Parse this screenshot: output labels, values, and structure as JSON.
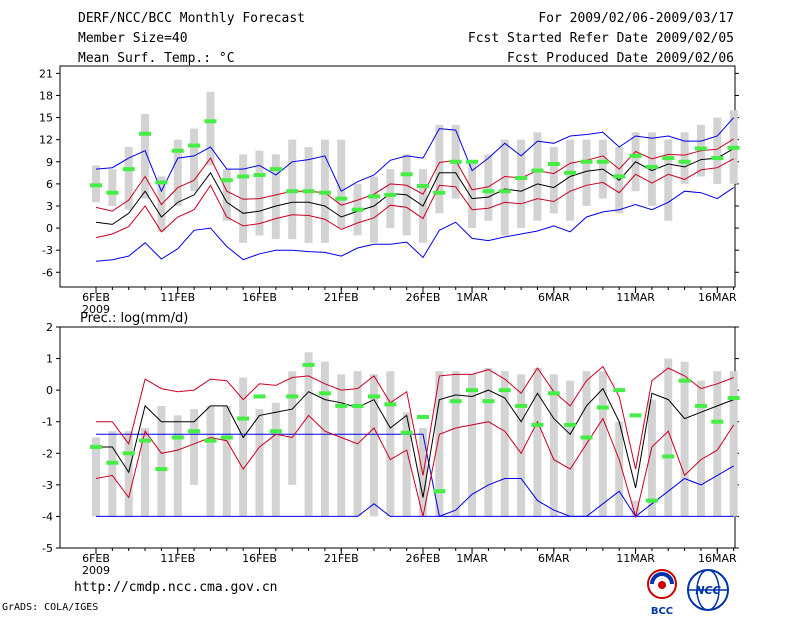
{
  "header": {
    "title": "DERF/NCC/BCC Monthly Forecast",
    "member_size": "Member Size=40",
    "variable": "Mean Surf. Temp.: °C",
    "period": "For 2009/02/06-2009/03/17",
    "started": "Fcst Started Refer Date 2009/02/05",
    "produced": "Fcst Produced Date 2009/02/06"
  },
  "footer": {
    "url": "http://cmdp.ncc.cma.gov.cn",
    "grads": "GrADS: COLA/IGES",
    "logo_bcc": "BCC",
    "logo_ncc": "NCC"
  },
  "colors": {
    "bar": "#d3d3d3",
    "mean": "#000000",
    "spread": "#cc0022",
    "extreme": "#0000ee",
    "obs": "#44ee44"
  },
  "chart_data": [
    {
      "type": "box",
      "title": "Mean Surf. Temp.: °C",
      "xlabel": "",
      "ylabel": "",
      "ylim": [
        -8,
        22
      ],
      "yticks": [
        -6,
        -3,
        0,
        3,
        6,
        9,
        12,
        15,
        18,
        21
      ],
      "x_ticks": [
        {
          "day": 0,
          "label": "6FEB",
          "sub": "2009"
        },
        {
          "day": 5,
          "label": "11FEB"
        },
        {
          "day": 10,
          "label": "16FEB"
        },
        {
          "day": 15,
          "label": "21FEB"
        },
        {
          "day": 20,
          "label": "26FEB"
        },
        {
          "day": 23,
          "label": "1MAR"
        },
        {
          "day": 28,
          "label": "6MAR"
        },
        {
          "day": 33,
          "label": "11MAR"
        },
        {
          "day": 38,
          "label": "16MAR"
        }
      ],
      "days": 40,
      "bar_low": [
        3.5,
        3,
        2.5,
        4,
        -0.5,
        3,
        5,
        8.5,
        1,
        -2,
        -1,
        -1.5,
        -1.5,
        -2,
        -2,
        0,
        -1,
        -2,
        0,
        -1,
        -2,
        2,
        4,
        0,
        1,
        -1,
        0,
        1,
        2,
        1,
        3,
        4,
        2,
        5,
        3,
        1,
        6,
        7,
        6,
        6
      ],
      "bar_high": [
        8.5,
        8,
        11,
        15.5,
        7,
        12,
        13.5,
        18.5,
        8,
        10,
        10.5,
        10,
        12,
        11,
        12,
        12,
        6,
        7,
        8,
        10,
        8,
        14,
        14,
        9,
        10,
        12,
        12,
        13,
        11,
        12,
        12,
        12,
        11,
        13,
        13,
        12,
        13,
        14,
        15,
        16
      ],
      "mean": [
        0.8,
        0.5,
        2,
        5,
        1.5,
        3.5,
        4.5,
        7.5,
        3.5,
        2,
        2.3,
        3,
        3.5,
        3.5,
        3,
        1.5,
        2.3,
        3,
        4.7,
        4.5,
        3,
        7.5,
        7.5,
        4,
        4.2,
        5.3,
        5,
        6,
        5.5,
        7,
        7.7,
        8,
        6.5,
        9,
        7.8,
        8.7,
        8.3,
        9.3,
        9.5,
        10.8
      ],
      "upper": [
        2.8,
        2.3,
        3.8,
        7,
        3.2,
        5.5,
        6.5,
        9.5,
        5,
        3.9,
        4,
        4.5,
        5,
        5,
        4.8,
        3.1,
        3.8,
        4.6,
        6,
        5.8,
        4.6,
        8.9,
        9.2,
        5.2,
        5.6,
        7,
        6.8,
        7.8,
        7.4,
        8.8,
        9.2,
        9.8,
        8,
        10.4,
        9.4,
        10,
        9.9,
        10.5,
        10.7,
        12.1
      ],
      "lower": [
        -1.3,
        -0.8,
        0.2,
        3,
        -0.5,
        1.5,
        2.5,
        5.8,
        1.5,
        0.3,
        0.6,
        1.3,
        1.8,
        1.7,
        1.2,
        -0.2,
        0.7,
        1.4,
        3.1,
        2.8,
        1.3,
        5.8,
        5.6,
        2.5,
        2.7,
        3.5,
        3.3,
        4,
        3.6,
        5,
        5.8,
        6.2,
        4.8,
        7.3,
        6.1,
        7.3,
        6.6,
        7.9,
        8.2,
        9.4
      ],
      "max": [
        8,
        8.2,
        9.5,
        10.5,
        5,
        9.5,
        9.8,
        11,
        8,
        8,
        8.5,
        7.2,
        9,
        9.3,
        9.8,
        5,
        6.3,
        7.2,
        9.2,
        9.8,
        9.5,
        13.5,
        13.3,
        7.8,
        9.5,
        11.5,
        9.8,
        11.8,
        11.5,
        12.5,
        12.7,
        13,
        11,
        12.5,
        12.2,
        12.5,
        11.8,
        11.8,
        12.5,
        15
      ],
      "min": [
        -4.5,
        -4.3,
        -3.8,
        -2,
        -4.2,
        -2.8,
        -0.3,
        0,
        -2.5,
        -4.3,
        -3.5,
        -3,
        -3,
        -3.2,
        -3.3,
        -3.8,
        -2.7,
        -2.2,
        -2.2,
        -1.9,
        -4,
        -0.3,
        0.8,
        -1.4,
        -1.7,
        -1.2,
        -0.8,
        -0.4,
        0.3,
        -0.5,
        1.5,
        2.2,
        2.5,
        3.2,
        2.5,
        3.5,
        5,
        4.8,
        4,
        5.5
      ],
      "obs": [
        5.8,
        4.8,
        8,
        12.8,
        6.2,
        10.5,
        11.2,
        14.5,
        6.5,
        7,
        7.2,
        8,
        5,
        5,
        4.8,
        4,
        2.5,
        4.3,
        4.5,
        7.3,
        5.7,
        4.8,
        9,
        9,
        5,
        5,
        6.8,
        7.8,
        8.7,
        7.5,
        9,
        9,
        7,
        9.8,
        8.3,
        9.5,
        9,
        10.8,
        9.5,
        10.9
      ]
    },
    {
      "type": "box",
      "title": "Prec.: log(mm/d)",
      "xlabel": "",
      "ylabel": "",
      "ylim": [
        -5,
        2
      ],
      "yticks": [
        -5,
        -4,
        -3,
        -2,
        -1,
        0,
        1,
        2
      ],
      "x_ticks": [
        {
          "day": 0,
          "label": "6FEB",
          "sub": "2009"
        },
        {
          "day": 5,
          "label": "11FEB"
        },
        {
          "day": 10,
          "label": "16FEB"
        },
        {
          "day": 15,
          "label": "21FEB"
        },
        {
          "day": 20,
          "label": "26FEB"
        },
        {
          "day": 23,
          "label": "1MAR"
        },
        {
          "day": 28,
          "label": "6MAR"
        },
        {
          "day": 33,
          "label": "11MAR"
        },
        {
          "day": 38,
          "label": "16MAR"
        }
      ],
      "days": 40,
      "bar_low": [
        -4,
        -4,
        -4,
        -4,
        -4,
        -4,
        -3,
        -4,
        -4,
        -4,
        -4,
        -4,
        -3,
        -4,
        -4,
        -4,
        -4,
        -4,
        -4,
        -4,
        -4,
        -4,
        -4,
        -4,
        -4,
        -4,
        -4,
        -4,
        -4,
        -4,
        -4,
        -4,
        -4,
        -4,
        -4,
        -4,
        -4,
        -4,
        -4,
        -4
      ],
      "bar_high": [
        -1.5,
        -1.3,
        -1.3,
        -1.2,
        -0.5,
        -0.8,
        -0.6,
        -0.5,
        -0.5,
        0.4,
        -0.6,
        -0.4,
        0.6,
        1.2,
        0.9,
        0.5,
        0.6,
        0.5,
        0.6,
        -0.7,
        -1.2,
        0.6,
        0.6,
        0.5,
        0.7,
        0.6,
        0.5,
        0.7,
        0.5,
        0.3,
        0.6,
        0.6,
        -1,
        -3.5,
        -0.3,
        1,
        0.9,
        0.3,
        0.6,
        0.6
      ],
      "mean": [
        -1.8,
        -1.8,
        -2.6,
        -0.5,
        -1,
        -1,
        -1,
        -0.5,
        -0.5,
        -1.5,
        -0.8,
        -0.7,
        -0.6,
        -0.05,
        -0.3,
        -0.4,
        -0.55,
        -0.3,
        -1.2,
        -0.8,
        -3.4,
        -0.3,
        -0.15,
        -0.2,
        0,
        -0.25,
        -1,
        -0.1,
        -0.9,
        -1.4,
        -0.5,
        0.05,
        -1,
        -3.1,
        -0.1,
        -0.3,
        -0.9,
        -0.7,
        -0.5,
        -0.3
      ],
      "upper": [
        -1,
        -1,
        -1.7,
        0.35,
        0.05,
        -0.05,
        0,
        0.35,
        0.3,
        -0.3,
        0.2,
        0.15,
        0.4,
        0.45,
        0.2,
        0,
        0.05,
        0.45,
        -0.4,
        -0.05,
        -2.7,
        0.45,
        0.5,
        0.5,
        0.65,
        0.35,
        -0.1,
        0.7,
        -0.05,
        -0.5,
        0.3,
        0.75,
        -0.2,
        -2.5,
        0.3,
        0.7,
        0.45,
        0.05,
        0.2,
        0.4
      ],
      "lower": [
        -2.8,
        -2.7,
        -3.4,
        -1.3,
        -2,
        -1.9,
        -1.7,
        -1.5,
        -1.6,
        -2.5,
        -1.8,
        -1.4,
        -1.5,
        -0.8,
        -1.3,
        -1.5,
        -1.7,
        -1.2,
        -2.2,
        -1.9,
        -4,
        -1.4,
        -1.2,
        -1.1,
        -1,
        -1.3,
        -2,
        -1,
        -2.2,
        -2.5,
        -1.7,
        -0.9,
        -2.2,
        -4,
        -1.8,
        -1.3,
        -2.7,
        -2.2,
        -1.9,
        -1.1
      ],
      "max": [
        -1.4,
        -1.4,
        -1.4,
        -1.4,
        -1.4,
        -1.4,
        -1.4,
        -1.4,
        -1.4,
        -1.4,
        -1.4,
        -1.4,
        -1.4,
        -1.4,
        -1.4,
        -1.4,
        -1.4,
        -1.4,
        -1.4,
        -1.4,
        -1.4,
        -4,
        -3.8,
        -3.3,
        -3,
        -2.8,
        -2.8,
        -3.5,
        -3.8,
        -4,
        -4,
        -3.6,
        -3.2,
        -4,
        -3.6,
        -3.2,
        -2.8,
        -3,
        -2.7,
        -2.4
      ],
      "min": [
        -4,
        -4,
        -4,
        -4,
        -4,
        -4,
        -4,
        -4,
        -4,
        -4,
        -4,
        -4,
        -4,
        -4,
        -4,
        -4,
        -4,
        -3.6,
        -4,
        -4,
        -4,
        -4,
        -4,
        -4,
        -4,
        -4,
        -4,
        -4,
        -4,
        -4,
        -4,
        -4,
        -4,
        -4,
        -4,
        -4,
        -4,
        -4,
        -4,
        -4
      ],
      "obs": [
        -1.8,
        -2.3,
        -2,
        -1.6,
        -2.5,
        -1.5,
        -1.3,
        -1.6,
        -1.5,
        -0.9,
        -0.2,
        -1.3,
        -0.2,
        0.8,
        -0.1,
        -0.5,
        -0.5,
        -0.2,
        -0.45,
        -1.35,
        -0.85,
        -3.2,
        -0.35,
        0,
        -0.35,
        0,
        -0.5,
        -1.1,
        -0.1,
        -1.1,
        -1.5,
        -0.55,
        0,
        -0.8,
        -3.5,
        -2.1,
        0.3,
        -0.5,
        -1,
        -0.25
      ]
    }
  ],
  "panel2_label": "Prec.: log(mm/d)"
}
